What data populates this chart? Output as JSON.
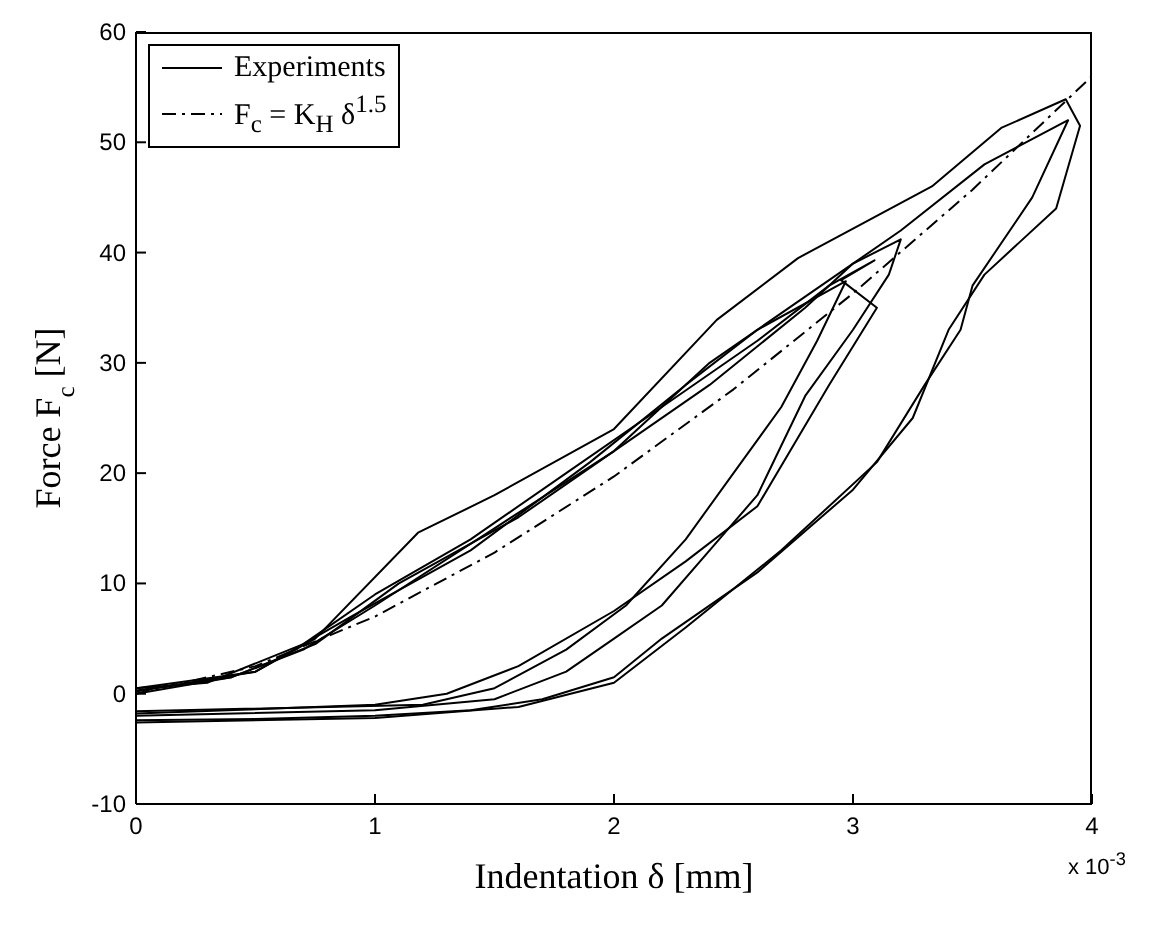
{
  "chart_data": {
    "type": "line",
    "xlabel": "Indentation δ [mm]",
    "ylabel": "Force F$_{c}$ [N]",
    "annotations": [
      "x 10$^{-3}$"
    ],
    "xlim": [
      0,
      4
    ],
    "xticks": [
      0,
      1,
      2,
      3,
      4
    ],
    "ylim": [
      -10,
      60
    ],
    "yticks": [
      -10,
      0,
      10,
      20,
      30,
      40,
      50,
      60
    ],
    "grid": false,
    "legend": "top left",
    "marker": "none",
    "series": [
      {
        "name": "Experiments",
        "color": "#000000",
        "line_style": "solid",
        "x": [
          0,
          0.5,
          0.75,
          1.18,
          1.5,
          2.0,
          2.43,
          2.77,
          3.33,
          3.62,
          3.89,
          3.95,
          3.85,
          3.55,
          3.4,
          3.25,
          3.0,
          2.6,
          2.2,
          2.0,
          1.7,
          1.4,
          1.0,
          0.5,
          0
        ],
        "values": [
          0.5,
          2,
          5,
          14.6,
          18,
          24,
          33.9,
          39.5,
          46,
          51.3,
          53.9,
          51.5,
          44,
          38,
          33,
          25,
          18.5,
          11,
          5,
          1.5,
          -0.5,
          -1.5,
          -2,
          -2.3,
          -2.4
        ]
      },
      {
        "color": "#000000",
        "line_style": "solid",
        "x": [
          0,
          0.4,
          0.75,
          1.1,
          1.6,
          2.0,
          2.4,
          2.8,
          3.2,
          3.55,
          3.9,
          3.75,
          3.5,
          3.45,
          3.3,
          3.1,
          2.7,
          2.3,
          2.0,
          1.6,
          1.0,
          0
        ],
        "values": [
          0.3,
          1.5,
          4.5,
          10,
          16,
          22,
          30,
          36,
          42,
          48,
          52,
          45,
          37,
          33,
          28,
          21,
          13,
          6,
          1,
          -1.2,
          -2.2,
          -2.6
        ]
      },
      {
        "color": "#000000",
        "line_style": "solid",
        "x": [
          0,
          0.4,
          0.7,
          1.0,
          1.5,
          2.0,
          2.4,
          2.8,
          3.0,
          3.2,
          3.15,
          3.0,
          2.8,
          2.6,
          2.4,
          2.2,
          2.0,
          1.8,
          1.5,
          1.0,
          0
        ],
        "values": [
          0,
          1.5,
          4,
          8,
          15,
          22,
          28,
          35,
          39,
          41.2,
          38,
          33,
          27,
          18,
          13,
          8,
          5,
          2,
          -0.5,
          -1.5,
          -2
        ]
      },
      {
        "color": "#000000",
        "line_style": "solid",
        "x": [
          0,
          0.3,
          0.7,
          1.0,
          1.4,
          1.8,
          2.2,
          2.6,
          2.9,
          3.09,
          2.95,
          3.1,
          2.9,
          2.6,
          2.3,
          2.0,
          1.6,
          1.3,
          1.0,
          0
        ],
        "values": [
          0.5,
          1,
          4.5,
          9,
          14,
          20,
          26,
          32,
          37,
          39.3,
          37.5,
          35,
          28,
          17,
          12,
          7.5,
          2.5,
          0,
          -1,
          -1.8
        ]
      },
      {
        "color": "#000000",
        "line_style": "solid",
        "x": [
          0,
          0.5,
          0.9,
          1.4,
          1.9,
          2.3,
          2.6,
          2.97,
          2.85,
          2.7,
          2.5,
          2.3,
          2.05,
          1.8,
          1.5,
          1.2,
          0
        ],
        "values": [
          0.2,
          2,
          7,
          13,
          21,
          28,
          33,
          37.4,
          32,
          26,
          20,
          14,
          8,
          4,
          0.5,
          -1,
          -1.6
        ]
      },
      {
        "name": "F$_{c}$ = K$_{H}$ δ$^{1.5}$",
        "color": "#000000",
        "line_style": "dashed",
        "x": [
          0,
          0.5,
          1,
          1.5,
          2,
          2.5,
          3,
          3.5,
          4
        ],
        "values": [
          0,
          2.5,
          7,
          12.8,
          19.7,
          27.6,
          36.3,
          45.7,
          56
        ]
      }
    ]
  }
}
